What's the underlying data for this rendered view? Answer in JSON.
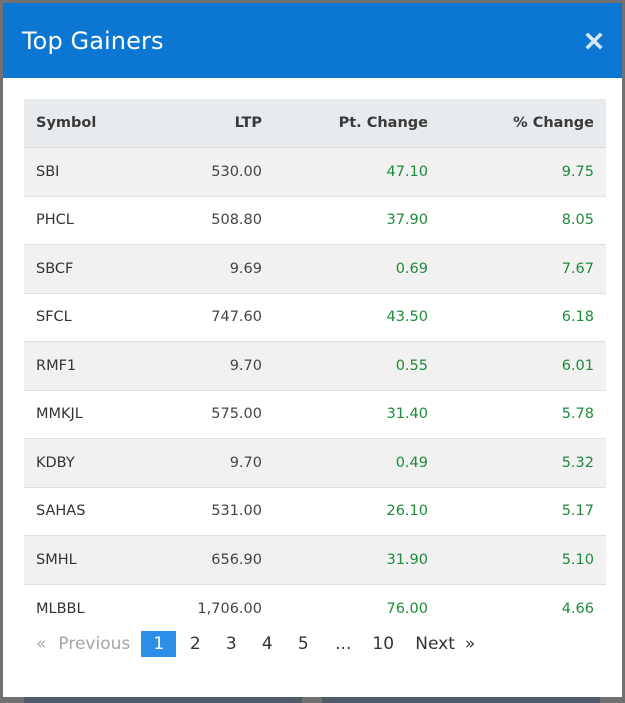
{
  "modal": {
    "title": "Top Gainers",
    "close_icon": "close-icon"
  },
  "table": {
    "columns": [
      "Symbol",
      "LTP",
      "Pt. Change",
      "% Change"
    ],
    "rows": [
      {
        "symbol": "SBI",
        "ltp": "530.00",
        "pt_change": "47.10",
        "pct_change": "9.75"
      },
      {
        "symbol": "PHCL",
        "ltp": "508.80",
        "pt_change": "37.90",
        "pct_change": "8.05"
      },
      {
        "symbol": "SBCF",
        "ltp": "9.69",
        "pt_change": "0.69",
        "pct_change": "7.67"
      },
      {
        "symbol": "SFCL",
        "ltp": "747.60",
        "pt_change": "43.50",
        "pct_change": "6.18"
      },
      {
        "symbol": "RMF1",
        "ltp": "9.70",
        "pt_change": "0.55",
        "pct_change": "6.01"
      },
      {
        "symbol": "MMKJL",
        "ltp": "575.00",
        "pt_change": "31.40",
        "pct_change": "5.78"
      },
      {
        "symbol": "KDBY",
        "ltp": "9.70",
        "pt_change": "0.49",
        "pct_change": "5.32"
      },
      {
        "symbol": "SAHAS",
        "ltp": "531.00",
        "pt_change": "26.10",
        "pct_change": "5.17"
      },
      {
        "symbol": "SMHL",
        "ltp": "656.90",
        "pt_change": "31.90",
        "pct_change": "5.10"
      },
      {
        "symbol": "MLBBL",
        "ltp": "1,706.00",
        "pt_change": "76.00",
        "pct_change": "4.66"
      }
    ]
  },
  "pagination": {
    "prev_arrow": "«",
    "prev_label": "Previous",
    "pages": [
      "1",
      "2",
      "3",
      "4",
      "5"
    ],
    "ellipsis": "...",
    "last_page": "10",
    "next_label": "Next",
    "next_arrow": "»",
    "current_page": "1"
  },
  "colors": {
    "header_bg": "#0b77d3",
    "positive_change": "#1f8a3b",
    "active_page": "#2c8ee6"
  }
}
